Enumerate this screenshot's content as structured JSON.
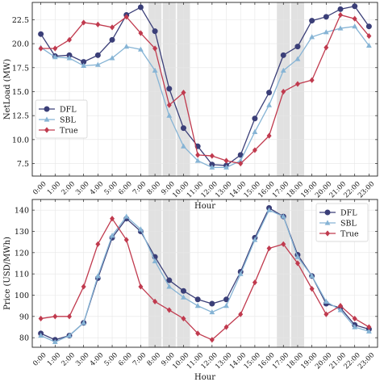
{
  "chart_data": [
    {
      "type": "line",
      "xlabel": "Hour",
      "ylabel": "NetLoad (MW)",
      "categories": [
        "0:00",
        "1:00",
        "2:00",
        "3:00",
        "4:00",
        "5:00",
        "6:00",
        "7:00",
        "8:00",
        "9:00",
        "10:00",
        "11:00",
        "12:00",
        "13:00",
        "14:00",
        "15:00",
        "16:00",
        "17:00",
        "18:00",
        "19:00",
        "20:00",
        "21:00",
        "22:00",
        "23:00"
      ],
      "yticks": [
        "7.5",
        "10.0",
        "12.5",
        "15.0",
        "17.5",
        "20.0",
        "22.5"
      ],
      "ylim": [
        6.2,
        24.3
      ],
      "grid": true,
      "legend_position": "left-bottom",
      "shaded_hours": [
        "7:30-8:30",
        "8:30-9:30",
        "9:30-10:30",
        "16:30-17:30",
        "17:30-18:30"
      ],
      "series": [
        {
          "name": "DFL",
          "color": "#3b3f78",
          "marker": "circle",
          "values": [
            21.0,
            18.7,
            18.8,
            18.1,
            18.8,
            20.4,
            23.0,
            23.8,
            21.3,
            15.3,
            11.2,
            9.3,
            7.4,
            7.3,
            8.4,
            12.2,
            14.9,
            18.8,
            19.7,
            22.4,
            22.8,
            23.6,
            23.9,
            21.8
          ]
        },
        {
          "name": "SBL",
          "color": "#86b4d5",
          "marker": "triangle",
          "values": [
            19.6,
            18.6,
            18.5,
            17.7,
            17.8,
            18.5,
            19.7,
            19.4,
            17.2,
            12.5,
            9.3,
            7.8,
            7.1,
            7.1,
            7.8,
            10.8,
            13.6,
            17.2,
            18.4,
            20.7,
            21.2,
            21.6,
            21.8,
            19.8
          ]
        },
        {
          "name": "True",
          "color": "#c03a4e",
          "marker": "diamond",
          "values": [
            19.5,
            19.5,
            20.4,
            22.2,
            22.0,
            21.7,
            22.8,
            21.1,
            19.5,
            13.6,
            14.9,
            8.4,
            8.3,
            7.8,
            7.5,
            8.9,
            10.4,
            15.0,
            15.8,
            16.2,
            19.6,
            23.0,
            22.6,
            20.8
          ]
        }
      ]
    },
    {
      "type": "line",
      "xlabel": "Hour",
      "ylabel": "Price (USD/MWh)",
      "categories": [
        "0:00",
        "1:00",
        "2:00",
        "3:00",
        "4:00",
        "5:00",
        "6:00",
        "7:00",
        "8:00",
        "9:00",
        "10:00",
        "11:00",
        "12:00",
        "13:00",
        "14:00",
        "15:00",
        "16:00",
        "17:00",
        "18:00",
        "19:00",
        "20:00",
        "21:00",
        "22:00",
        "23:00"
      ],
      "yticks": [
        "80",
        "90",
        "100",
        "110",
        "120",
        "130",
        "140"
      ],
      "ylim": [
        75.5,
        145
      ],
      "grid": true,
      "legend_position": "top-right",
      "shaded_hours": [
        "7:30-8:30",
        "8:30-9:30",
        "9:30-10:30",
        "16:30-17:30",
        "17:30-18:30"
      ],
      "series": [
        {
          "name": "DFL",
          "color": "#3b3f78",
          "marker": "circle",
          "values": [
            82,
            79,
            81,
            87,
            108,
            127,
            136,
            130,
            118,
            107,
            102,
            98,
            96,
            98,
            111,
            127,
            141,
            137,
            119,
            109,
            96,
            94,
            86,
            84
          ]
        },
        {
          "name": "SBL",
          "color": "#86b4d5",
          "marker": "triangle",
          "values": [
            81,
            78,
            81,
            87,
            109,
            128,
            137,
            131,
            116,
            104,
            99,
            95,
            92,
            95,
            110,
            126,
            140,
            137,
            118,
            109,
            97,
            93,
            85,
            83
          ]
        },
        {
          "name": "True",
          "color": "#c03a4e",
          "marker": "diamond",
          "values": [
            89,
            90,
            90,
            104,
            124,
            136,
            126,
            104,
            97,
            93,
            89,
            82,
            79,
            85,
            91,
            106,
            122,
            124,
            115,
            103,
            91,
            95,
            89,
            85
          ]
        }
      ]
    }
  ]
}
